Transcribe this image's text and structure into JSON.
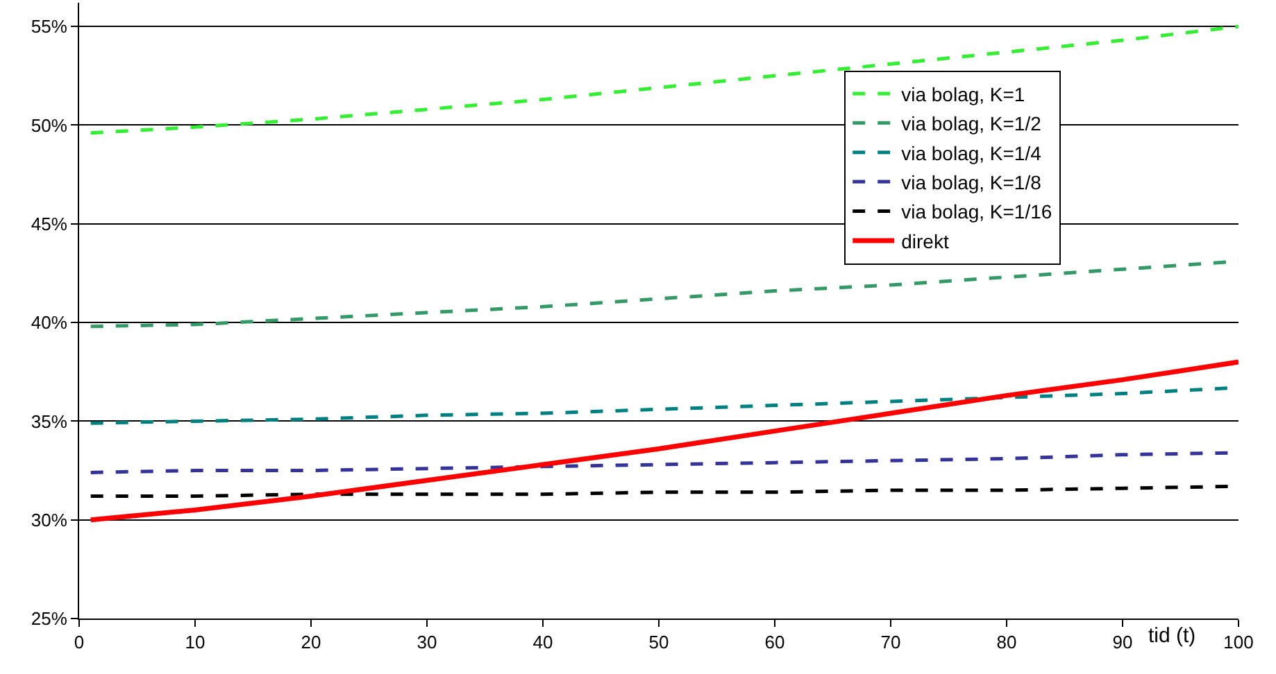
{
  "chart_data": {
    "type": "line",
    "xlabel": "tid (t)",
    "x": [
      1,
      10,
      20,
      30,
      40,
      50,
      60,
      70,
      80,
      90,
      100
    ],
    "xlim": [
      0,
      100
    ],
    "xticks": [
      0,
      10,
      20,
      30,
      40,
      50,
      60,
      70,
      80,
      90,
      100
    ],
    "ylim": [
      25,
      56.2
    ],
    "yticks": [
      {
        "value": 25,
        "label": "25%"
      },
      {
        "value": 30,
        "label": "30%"
      },
      {
        "value": 35,
        "label": "35%"
      },
      {
        "value": 40,
        "label": "40%"
      },
      {
        "value": 45,
        "label": "45%"
      },
      {
        "value": 50,
        "label": "50%"
      },
      {
        "value": 55,
        "label": "55%"
      }
    ],
    "grid": "y",
    "legend": "top right",
    "marker": "none",
    "series": [
      {
        "name": "via bolag, K=1",
        "color": "#33ee33",
        "line_style": "dashed",
        "values": [
          49.6,
          49.9,
          50.3,
          50.8,
          51.3,
          51.9,
          52.5,
          53.1,
          53.7,
          54.3,
          55.0
        ]
      },
      {
        "name": "via bolag, K=1/2",
        "color": "#339966",
        "line_style": "dashed",
        "values": [
          39.8,
          39.9,
          40.2,
          40.5,
          40.8,
          41.2,
          41.6,
          41.9,
          42.3,
          42.7,
          43.1
        ]
      },
      {
        "name": "via bolag, K=1/4",
        "color": "#008080",
        "line_style": "dashed",
        "values": [
          34.9,
          35.0,
          35.1,
          35.3,
          35.4,
          35.6,
          35.8,
          36.0,
          36.2,
          36.4,
          36.7
        ]
      },
      {
        "name": "via bolag, K=1/8",
        "color": "#333399",
        "line_style": "dashed",
        "values": [
          32.4,
          32.5,
          32.5,
          32.6,
          32.7,
          32.8,
          32.9,
          33.0,
          33.1,
          33.3,
          33.4
        ]
      },
      {
        "name": "via bolag, K=1/16",
        "color": "#000000",
        "line_style": "dashed",
        "values": [
          31.2,
          31.2,
          31.3,
          31.3,
          31.3,
          31.4,
          31.4,
          31.5,
          31.5,
          31.6,
          31.7
        ]
      },
      {
        "name": "direkt",
        "color": "#ff0000",
        "line_style": "solid",
        "values": [
          30.0,
          30.5,
          31.2,
          32.0,
          32.8,
          33.6,
          34.5,
          35.4,
          36.3,
          37.1,
          38.0
        ]
      }
    ]
  }
}
